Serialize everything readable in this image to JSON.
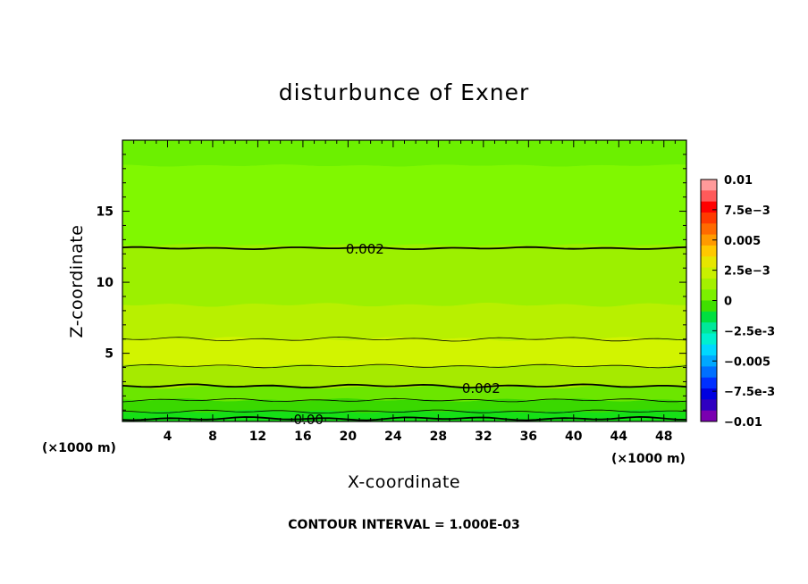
{
  "chart_data": {
    "type": "heatmap",
    "title": "disturbunce of Exner",
    "xlabel": "X-coordinate",
    "ylabel": "Z-coordinate",
    "x_unit": "(×1000 m)",
    "y_unit": "(×1000 m)",
    "xlim": [
      0,
      50
    ],
    "ylim": [
      0.2,
      20
    ],
    "x_ticks": [
      4,
      8,
      12,
      16,
      20,
      24,
      28,
      32,
      36,
      40,
      44,
      48
    ],
    "y_ticks": [
      5,
      10,
      15
    ],
    "contour_interval_note": "CONTOUR INTERVAL = 1.000E-03",
    "colorbar": {
      "labels": [
        "0.01",
        "7.5e-3",
        "0.005",
        "2.5e-3",
        "0",
        "-2.5e-3",
        "-0.005",
        "-7.5e-3",
        "-0.01"
      ],
      "colors": [
        "#ff9a9a",
        "#ff5a5a",
        "#ff0000",
        "#ff3a00",
        "#ff6a00",
        "#ff9a00",
        "#ffc800",
        "#e6e600",
        "#c8f000",
        "#a4f000",
        "#7cf000",
        "#40e000",
        "#00e040",
        "#00e89a",
        "#00f0d0",
        "#00d8ff",
        "#00a8ff",
        "#0070ff",
        "#0030ff",
        "#0000e0",
        "#3000c0",
        "#7a00b0"
      ]
    },
    "contour_labels": [
      {
        "text": "0.002",
        "x": 21.5,
        "z": 12.4
      },
      {
        "text": "0.002",
        "x": 31.8,
        "z": 2.6
      },
      {
        "text": "0.00",
        "x": 16.5,
        "z": 0.4
      }
    ],
    "field_bands_from_top": [
      {
        "z_top": 20.0,
        "z_bottom": 18.2,
        "value": 0.0012,
        "color": "#6cf000"
      },
      {
        "z_top": 18.2,
        "z_bottom": 12.6,
        "value": 0.0018,
        "color": "#80f800"
      },
      {
        "z_top": 12.6,
        "z_bottom": 8.4,
        "value": 0.0024,
        "color": "#9cf000"
      },
      {
        "z_top": 8.4,
        "z_bottom": 6.0,
        "value": 0.0029,
        "color": "#b8f000"
      },
      {
        "z_top": 6.0,
        "z_bottom": 4.1,
        "value": 0.0033,
        "color": "#d2f400"
      },
      {
        "z_top": 4.1,
        "z_bottom": 2.6,
        "value": 0.0025,
        "color": "#a6ea00"
      },
      {
        "z_top": 2.6,
        "z_bottom": 1.7,
        "value": 0.0015,
        "color": "#6ce600"
      },
      {
        "z_top": 1.7,
        "z_bottom": 0.9,
        "value": 0.0008,
        "color": "#3ad800"
      },
      {
        "z_top": 0.9,
        "z_bottom": 0.2,
        "value": 0.0002,
        "color": "#16e016"
      }
    ],
    "contour_levels_z": [
      {
        "z": 12.4,
        "bold": true
      },
      {
        "z": 6.0,
        "bold": false
      },
      {
        "z": 4.1,
        "bold": false
      },
      {
        "z": 2.7,
        "bold": true
      },
      {
        "z": 1.7,
        "bold": false
      },
      {
        "z": 0.9,
        "bold": false
      },
      {
        "z": 0.4,
        "bold": true
      }
    ]
  }
}
